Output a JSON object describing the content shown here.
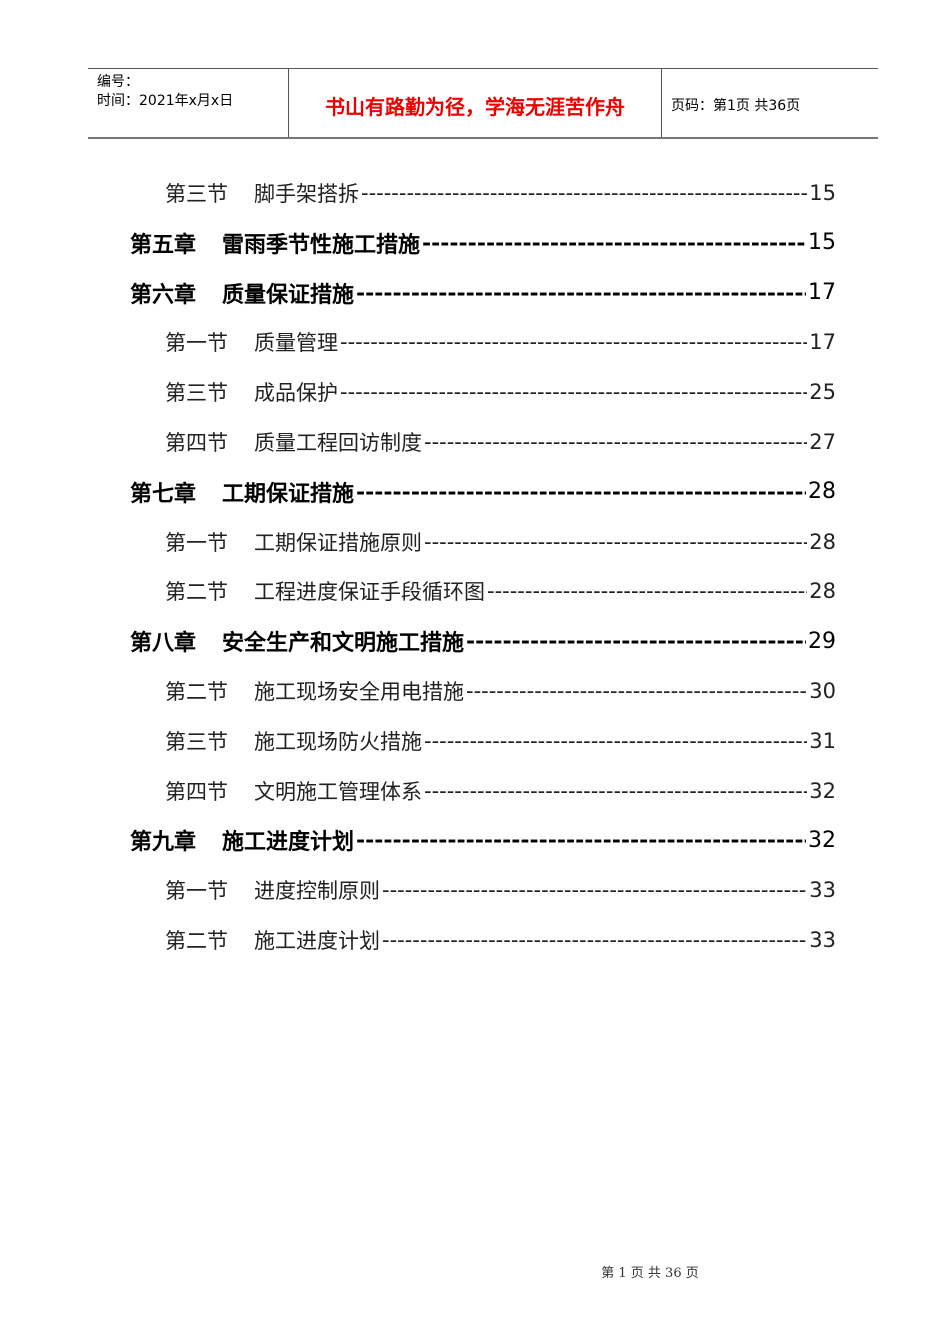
{
  "header": {
    "number_label": "编号：",
    "date_label": "时间：2021年x月x日",
    "motto": "书山有路勤为径，学海无涯苦作舟",
    "page_label": "页码：第1页 共36页"
  },
  "toc": [
    {
      "type": "section",
      "num": "第三节",
      "title": "脚手架搭拆",
      "page": "15"
    },
    {
      "type": "chapter",
      "num": "第五章",
      "title": "雷雨季节性施工措施",
      "page": "15"
    },
    {
      "type": "chapter",
      "num": "第六章",
      "title": "质量保证措施",
      "page": "17"
    },
    {
      "type": "section",
      "num": "第一节",
      "title": "质量管理",
      "page": "17"
    },
    {
      "type": "section",
      "num": "第三节",
      "title": "成品保护",
      "page": "25"
    },
    {
      "type": "section",
      "num": "第四节",
      "title": "质量工程回访制度",
      "page": "27"
    },
    {
      "type": "chapter",
      "num": "第七章",
      "title": "工期保证措施",
      "page": "28"
    },
    {
      "type": "section",
      "num": "第一节",
      "title": "工期保证措施原则",
      "page": "28"
    },
    {
      "type": "section",
      "num": "第二节",
      "title": "工程进度保证手段循环图",
      "page": "28"
    },
    {
      "type": "chapter",
      "num": "第八章",
      "title": "安全生产和文明施工措施",
      "page": "29"
    },
    {
      "type": "section",
      "num": "第二节",
      "title": "施工现场安全用电措施",
      "page": "30"
    },
    {
      "type": "section",
      "num": "第三节",
      "title": "施工现场防火措施",
      "page": "31"
    },
    {
      "type": "section",
      "num": "第四节",
      "title": "文明施工管理体系",
      "page": "32"
    },
    {
      "type": "chapter",
      "num": "第九章",
      "title": "施工进度计划",
      "page": "32"
    },
    {
      "type": "section",
      "num": "第一节",
      "title": "进度控制原则",
      "page": "33"
    },
    {
      "type": "section",
      "num": "第二节",
      "title": "施工进度计划",
      "page": "33"
    }
  ],
  "footer": {
    "page_text": "第 1 页 共 36 页"
  }
}
